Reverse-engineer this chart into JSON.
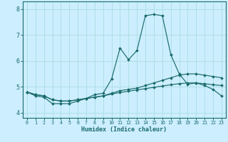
{
  "xlabel": "Humidex (Indice chaleur)",
  "bg_color": "#cceeff",
  "grid_color": "#aadddd",
  "line_color": "#1a6b6b",
  "xlim": [
    -0.5,
    23.5
  ],
  "ylim": [
    3.8,
    8.3
  ],
  "xticks": [
    0,
    1,
    2,
    3,
    4,
    5,
    6,
    7,
    8,
    9,
    10,
    11,
    12,
    13,
    14,
    15,
    16,
    17,
    18,
    19,
    20,
    21,
    22,
    23
  ],
  "yticks": [
    4,
    5,
    6,
    7,
    8
  ],
  "line1_x": [
    0,
    1,
    2,
    3,
    4,
    5,
    6,
    7,
    8,
    9,
    10,
    11,
    12,
    13,
    14,
    15,
    16,
    17,
    18,
    19,
    20,
    21,
    22,
    23
  ],
  "line1_y": [
    4.8,
    4.65,
    4.6,
    4.35,
    4.35,
    4.35,
    4.45,
    4.55,
    4.7,
    4.75,
    5.3,
    6.5,
    6.05,
    6.4,
    7.75,
    7.8,
    7.75,
    6.25,
    5.5,
    5.1,
    5.15,
    5.05,
    4.9,
    4.65
  ],
  "line2_x": [
    0,
    1,
    2,
    3,
    4,
    5,
    6,
    7,
    8,
    9,
    10,
    11,
    12,
    13,
    14,
    15,
    16,
    17,
    18,
    19,
    20,
    21,
    22,
    23
  ],
  "line2_y": [
    4.8,
    4.7,
    4.65,
    4.5,
    4.45,
    4.45,
    4.5,
    4.55,
    4.6,
    4.65,
    4.75,
    4.85,
    4.9,
    4.95,
    5.05,
    5.15,
    5.25,
    5.35,
    5.45,
    5.5,
    5.5,
    5.45,
    5.4,
    5.35
  ],
  "line3_x": [
    0,
    1,
    2,
    3,
    4,
    5,
    6,
    7,
    8,
    9,
    10,
    11,
    12,
    13,
    14,
    15,
    16,
    17,
    18,
    19,
    20,
    21,
    22,
    23
  ],
  "line3_y": [
    4.8,
    4.7,
    4.65,
    4.5,
    4.45,
    4.45,
    4.5,
    4.55,
    4.6,
    4.65,
    4.72,
    4.78,
    4.83,
    4.88,
    4.93,
    4.98,
    5.03,
    5.08,
    5.12,
    5.15,
    5.15,
    5.12,
    5.08,
    5.05
  ]
}
